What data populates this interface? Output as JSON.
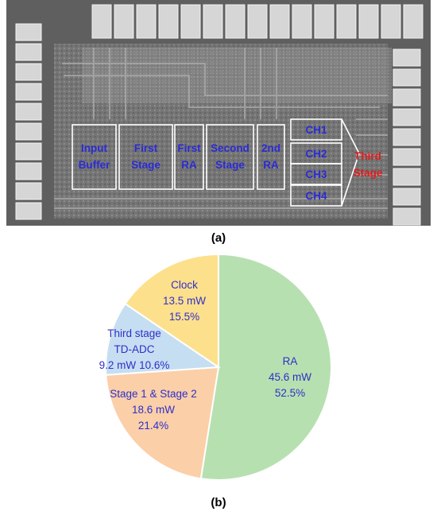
{
  "panel_a": {
    "caption": "(a)",
    "blocks": [
      "Input\nBuffer",
      "First\nStage",
      "First\nRA",
      "Second\nStage",
      "2nd\nRA"
    ],
    "channels": [
      "CH1",
      "CH2",
      "CH3",
      "CH4"
    ],
    "third_stage_label": "Third\nStage",
    "colors": {
      "block_text": "#2b2bd6",
      "third_stage_text": "#e01b1b",
      "outline": "#ffffff"
    }
  },
  "panel_b": {
    "caption": "(b)"
  },
  "chart_data": {
    "type": "pie",
    "slices": [
      {
        "label": "RA",
        "power": "45.6 mW",
        "percent": "52.5%",
        "value": 52.5,
        "color": "#b7e0b0"
      },
      {
        "label": "Stage 1 & Stage 2",
        "power": "18.6 mW",
        "percent": "21.4%",
        "value": 21.4,
        "color": "#fbcfa8"
      },
      {
        "label": "Third stage\nTD-ADC",
        "power": "9.2 mW",
        "percent": "10.6%",
        "value": 10.6,
        "color": "#c6def2"
      },
      {
        "label": "Clock",
        "power": "13.5 mW",
        "percent": "15.5%",
        "value": 15.5,
        "color": "#fde08c"
      }
    ],
    "start": "12 o'clock",
    "direction": "clockwise",
    "slice_border": "#ffffff"
  }
}
